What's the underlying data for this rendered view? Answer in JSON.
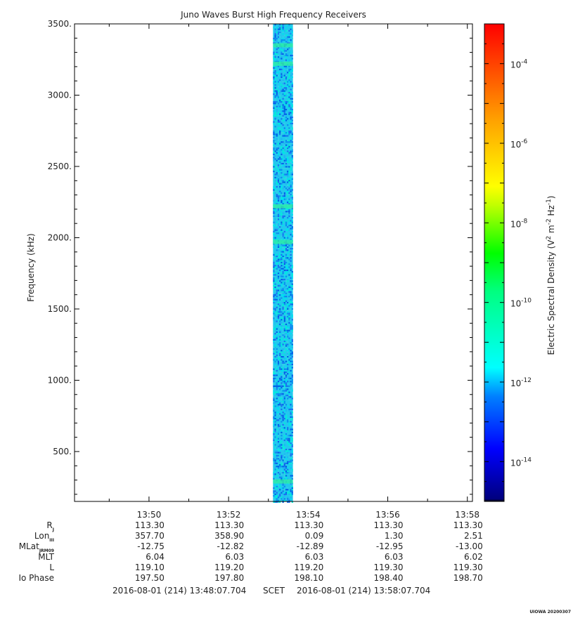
{
  "chart_data": {
    "type": "heatmap",
    "title": "Juno Waves Burst High Frequency Receivers",
    "ylabel": "Frequency (kHz)",
    "ylim": [
      150,
      3500
    ],
    "yticks": [
      "500.",
      "1000.",
      "1500.",
      "2000.",
      "2500.",
      "3000.",
      "3500."
    ],
    "ytick_values": [
      500,
      1000,
      1500,
      2000,
      2500,
      3000,
      3500
    ],
    "xlim": [
      "13:48:07.704",
      "13:58:07.704"
    ],
    "xticks": [
      "13:50",
      "13:52",
      "13:54",
      "13:56",
      "13:58"
    ],
    "data_interval": {
      "start": "13:53:07",
      "end": "13:53:37",
      "frequency_range_khz": [
        150,
        3500
      ]
    },
    "spectral_features_khz": [
      3350,
      3220,
      2220,
      1970,
      290
    ],
    "colorbar": {
      "label_prefix": "Electric Spectral Density (V",
      "label_mid": " m",
      "label_suffix": " Hz",
      "label_close": ")",
      "label_exp1": "2",
      "label_exp2": "-2",
      "label_exp3": "-1",
      "scale": "log",
      "range": [
        -15,
        -3
      ],
      "ticks": [
        {
          "base": "10",
          "exp": "-4",
          "value": -4
        },
        {
          "base": "10",
          "exp": "-6",
          "value": -6
        },
        {
          "base": "10",
          "exp": "-8",
          "value": -8
        },
        {
          "base": "10",
          "exp": "-10",
          "value": -10
        },
        {
          "base": "10",
          "exp": "-12",
          "value": -12
        },
        {
          "base": "10",
          "exp": "-14",
          "value": -14
        }
      ]
    }
  },
  "ephemeris": {
    "rows": [
      {
        "label": "R",
        "sub": "J",
        "values": [
          "113.30",
          "113.30",
          "113.30",
          "113.30",
          "113.30"
        ]
      },
      {
        "label": "Lon",
        "sub": "III",
        "values": [
          "357.70",
          "358.90",
          "0.09",
          "1.30",
          "2.51"
        ]
      },
      {
        "label": "MLat",
        "sub": "JRM09",
        "values": [
          "-12.75",
          "-12.82",
          "-12.89",
          "-12.95",
          "-13.00"
        ]
      },
      {
        "label": "MLT",
        "sub": "",
        "values": [
          "6.04",
          "6.03",
          "6.03",
          "6.03",
          "6.02"
        ]
      },
      {
        "label": "L",
        "sub": "",
        "values": [
          "119.10",
          "119.20",
          "119.20",
          "119.30",
          "119.30"
        ]
      },
      {
        "label": "Io Phase",
        "sub": "",
        "values": [
          "197.50",
          "197.80",
          "198.10",
          "198.40",
          "198.70"
        ]
      }
    ]
  },
  "footer": {
    "start": "2016-08-01 (214) 13:48:07.704",
    "scet": "SCET",
    "end": "2016-08-01 (214) 13:58:07.704"
  },
  "stamp": "UIOWA 20200307"
}
